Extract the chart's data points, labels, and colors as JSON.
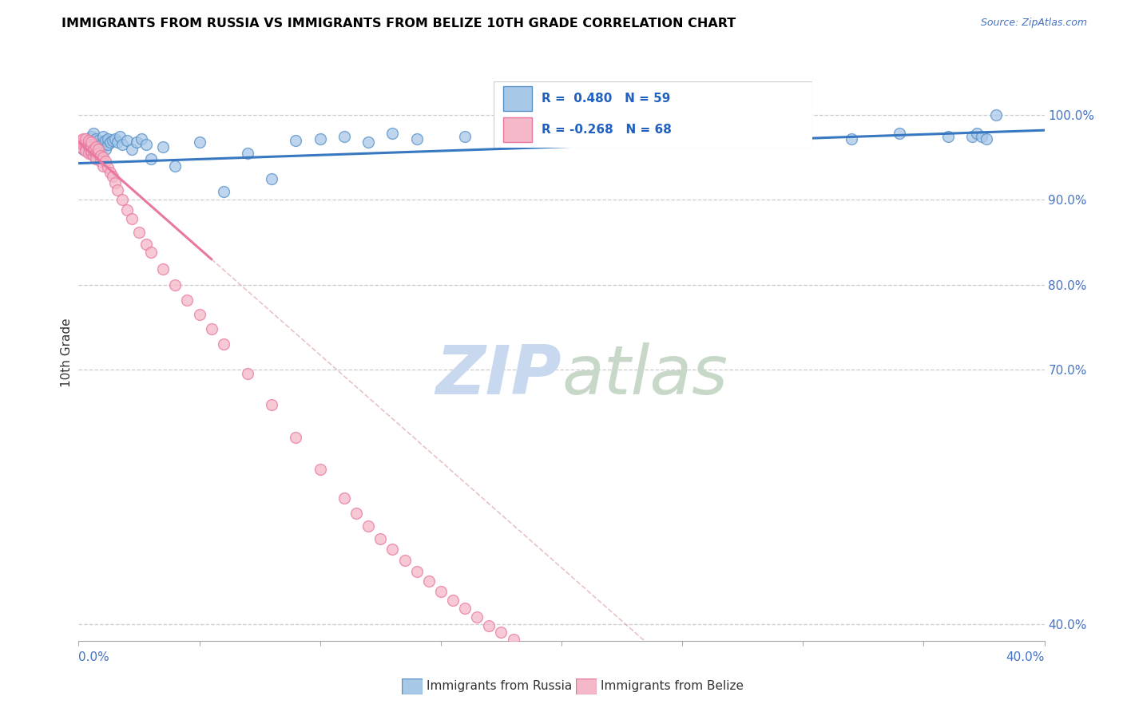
{
  "title": "IMMIGRANTS FROM RUSSIA VS IMMIGRANTS FROM BELIZE 10TH GRADE CORRELATION CHART",
  "source": "Source: ZipAtlas.com",
  "ylabel": "10th Grade",
  "yaxis_ticks": [
    "100.0%",
    "90.0%",
    "80.0%",
    "70.0%",
    "40.0%"
  ],
  "yaxis_values": [
    1.0,
    0.9,
    0.8,
    0.7,
    0.4
  ],
  "xaxis_range": [
    0.0,
    0.4
  ],
  "yaxis_range": [
    0.38,
    1.06
  ],
  "legend_russia": "Immigrants from Russia",
  "legend_belize": "Immigrants from Belize",
  "R_russia": "0.480",
  "N_russia": 59,
  "R_belize": "-0.268",
  "N_belize": 68,
  "color_russia": "#a8c8e8",
  "color_belize": "#f4b8c8",
  "color_russia_edge": "#5590c8",
  "color_belize_edge": "#e878a0",
  "color_russia_line": "#3878c0",
  "color_belize_line": "#e878a0",
  "russia_x": [
    0.002,
    0.003,
    0.004,
    0.005,
    0.005,
    0.006,
    0.006,
    0.007,
    0.007,
    0.008,
    0.008,
    0.009,
    0.009,
    0.01,
    0.01,
    0.011,
    0.011,
    0.012,
    0.012,
    0.013,
    0.014,
    0.015,
    0.016,
    0.017,
    0.018,
    0.02,
    0.022,
    0.024,
    0.026,
    0.028,
    0.03,
    0.035,
    0.04,
    0.05,
    0.06,
    0.07,
    0.08,
    0.09,
    0.1,
    0.11,
    0.12,
    0.13,
    0.14,
    0.16,
    0.18,
    0.2,
    0.22,
    0.24,
    0.26,
    0.28,
    0.3,
    0.32,
    0.34,
    0.36,
    0.37,
    0.372,
    0.374,
    0.376,
    0.38
  ],
  "russia_y": [
    0.96,
    0.968,
    0.97,
    0.972,
    0.975,
    0.965,
    0.978,
    0.96,
    0.972,
    0.965,
    0.97,
    0.958,
    0.962,
    0.968,
    0.975,
    0.96,
    0.97,
    0.965,
    0.972,
    0.968,
    0.97,
    0.972,
    0.968,
    0.975,
    0.965,
    0.97,
    0.96,
    0.968,
    0.972,
    0.965,
    0.948,
    0.962,
    0.94,
    0.968,
    0.91,
    0.955,
    0.925,
    0.97,
    0.972,
    0.975,
    0.968,
    0.978,
    0.972,
    0.975,
    0.978,
    0.975,
    0.97,
    0.972,
    0.975,
    0.978,
    0.975,
    0.972,
    0.978,
    0.975,
    0.975,
    0.978,
    0.975,
    0.972,
    1.0
  ],
  "belize_x": [
    0.001,
    0.001,
    0.002,
    0.002,
    0.002,
    0.003,
    0.003,
    0.003,
    0.003,
    0.004,
    0.004,
    0.004,
    0.004,
    0.005,
    0.005,
    0.005,
    0.005,
    0.005,
    0.005,
    0.006,
    0.006,
    0.006,
    0.007,
    0.007,
    0.007,
    0.008,
    0.008,
    0.009,
    0.009,
    0.01,
    0.01,
    0.011,
    0.012,
    0.013,
    0.014,
    0.015,
    0.016,
    0.018,
    0.02,
    0.022,
    0.025,
    0.028,
    0.03,
    0.035,
    0.04,
    0.045,
    0.05,
    0.055,
    0.06,
    0.07,
    0.08,
    0.09,
    0.1,
    0.11,
    0.115,
    0.12,
    0.125,
    0.13,
    0.135,
    0.14,
    0.145,
    0.15,
    0.155,
    0.16,
    0.165,
    0.17,
    0.175,
    0.18
  ],
  "belize_y": [
    0.962,
    0.97,
    0.968,
    0.972,
    0.965,
    0.96,
    0.965,
    0.958,
    0.972,
    0.962,
    0.955,
    0.968,
    0.97,
    0.96,
    0.965,
    0.955,
    0.958,
    0.962,
    0.968,
    0.96,
    0.952,
    0.958,
    0.955,
    0.962,
    0.948,
    0.955,
    0.96,
    0.952,
    0.945,
    0.95,
    0.94,
    0.945,
    0.938,
    0.932,
    0.928,
    0.92,
    0.912,
    0.9,
    0.888,
    0.878,
    0.862,
    0.848,
    0.838,
    0.818,
    0.8,
    0.782,
    0.765,
    0.748,
    0.73,
    0.695,
    0.658,
    0.62,
    0.582,
    0.548,
    0.53,
    0.515,
    0.5,
    0.488,
    0.475,
    0.462,
    0.45,
    0.438,
    0.428,
    0.418,
    0.408,
    0.398,
    0.39,
    0.382
  ],
  "watermark_zip": "ZIP",
  "watermark_atlas": "atlas",
  "watermark_color_zip": "#c8d8ee",
  "watermark_color_atlas": "#c8d8c8"
}
